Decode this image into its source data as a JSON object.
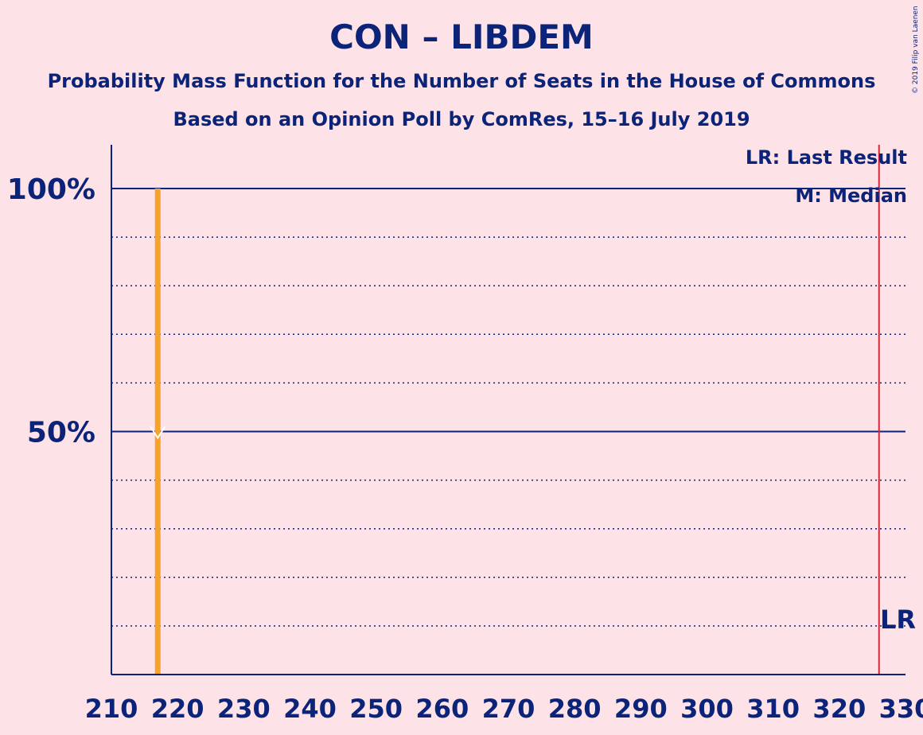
{
  "title": "CON – LIBDEM",
  "subtitle": "Probability Mass Function for the Number of Seats in the House of Commons",
  "subtitle2": "Based on an Opinion Poll by ComRes, 15–16 July 2019",
  "copyright": "© 2019 Filip van Laenen",
  "legend": {
    "last_result": "LR: Last Result",
    "median": "M: Median"
  },
  "lr_label": "LR",
  "median_marker": "M",
  "colors": {
    "background": "#fde3e7",
    "axis": "#0b2378",
    "bar": "#f5a32a",
    "last_result_line": "#d4283a"
  },
  "chart_data": {
    "type": "bar",
    "x_ticks": [
      210,
      220,
      230,
      240,
      250,
      260,
      270,
      280,
      290,
      300,
      310,
      320,
      330
    ],
    "y_ticks": [
      {
        "value": 50,
        "label": "50%"
      },
      {
        "value": 100,
        "label": "100%"
      }
    ],
    "xlim": [
      210,
      330
    ],
    "ylim": [
      0,
      100
    ],
    "bars": [
      {
        "x": 217,
        "y": 100
      }
    ],
    "median": 217,
    "median_y": 50,
    "last_result": 326,
    "grid": "dotted every 10%, solid at 50% and 100%"
  }
}
